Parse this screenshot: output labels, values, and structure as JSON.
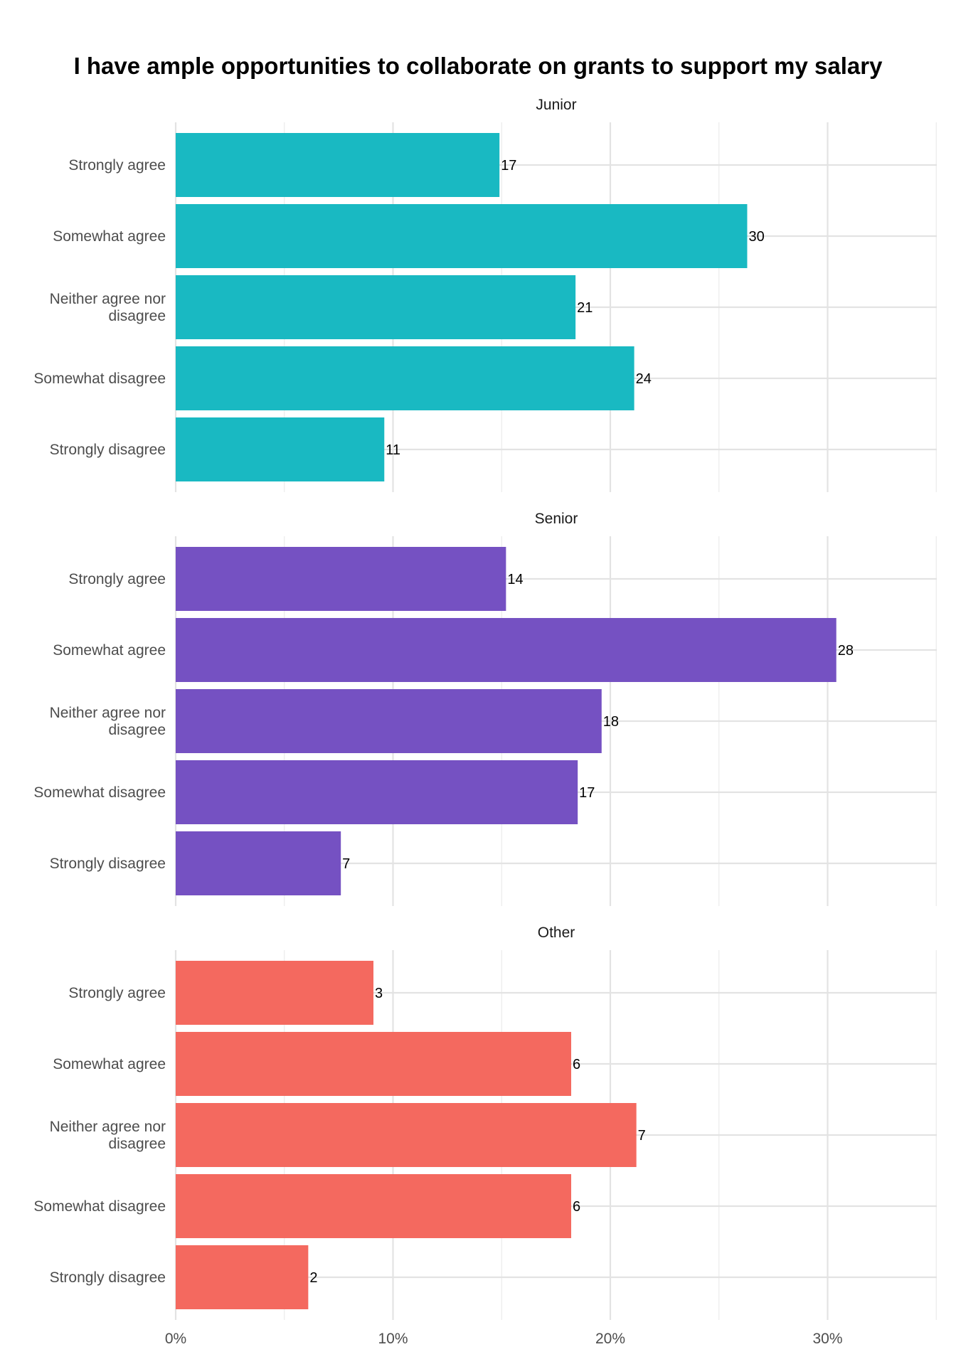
{
  "chart_data": {
    "type": "bar",
    "orientation": "horizontal",
    "title": "I have ample opportunities to collaborate on grants to support my salary",
    "categories": [
      "Strongly agree",
      "Somewhat agree",
      "Neither agree nor disagree",
      "Somewhat disagree",
      "Strongly disagree"
    ],
    "category_lines": [
      [
        "Strongly agree"
      ],
      [
        "Somewhat agree"
      ],
      [
        "Neither agree nor",
        "disagree"
      ],
      [
        "Somewhat disagree"
      ],
      [
        "Strongly disagree"
      ]
    ],
    "xlim": [
      0,
      35
    ],
    "x_ticks": [
      0,
      10,
      20,
      30
    ],
    "x_tick_labels": [
      "0%",
      "10%",
      "20%",
      "30%"
    ],
    "x_unit": "percent",
    "grid": true,
    "legend": "none",
    "panels": [
      {
        "name": "Junior",
        "color": "#19B9C2",
        "percent": [
          14.9,
          26.3,
          18.4,
          21.1,
          9.6
        ],
        "counts": [
          17,
          30,
          21,
          24,
          11
        ]
      },
      {
        "name": "Senior",
        "color": "#7551C2",
        "percent": [
          15.2,
          30.4,
          19.6,
          18.5,
          7.6
        ],
        "counts": [
          14,
          28,
          18,
          17,
          7
        ]
      },
      {
        "name": "Other",
        "color": "#F4695F",
        "percent": [
          9.1,
          18.2,
          21.2,
          18.2,
          6.1
        ],
        "counts": [
          3,
          6,
          7,
          6,
          2
        ]
      }
    ]
  }
}
